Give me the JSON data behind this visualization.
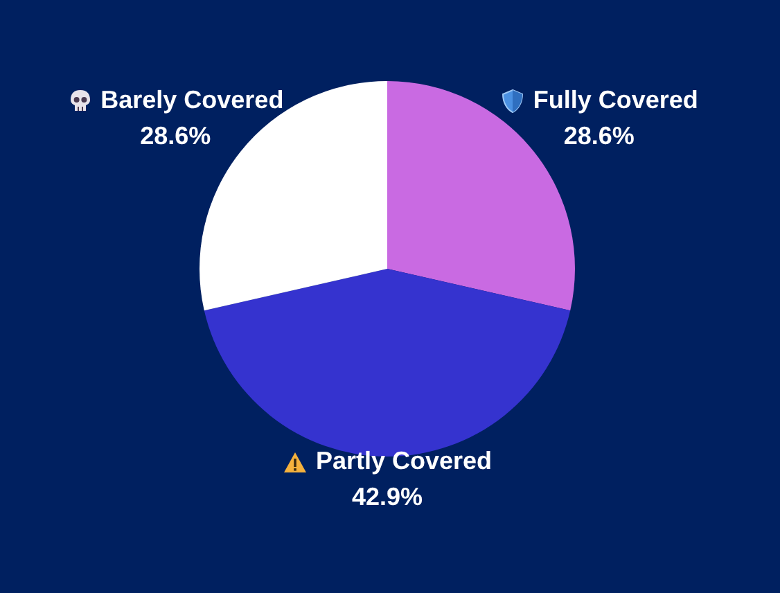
{
  "chart_data": {
    "type": "pie",
    "categories": [
      "Fully Covered",
      "Partly Covered",
      "Barely Covered"
    ],
    "values": [
      28.6,
      42.9,
      28.6
    ],
    "colors": [
      "#c96ae2",
      "#3533cf",
      "#ffffff"
    ],
    "value_labels": [
      "28.6%",
      "42.9%",
      "28.6%"
    ],
    "legend": false
  }
}
